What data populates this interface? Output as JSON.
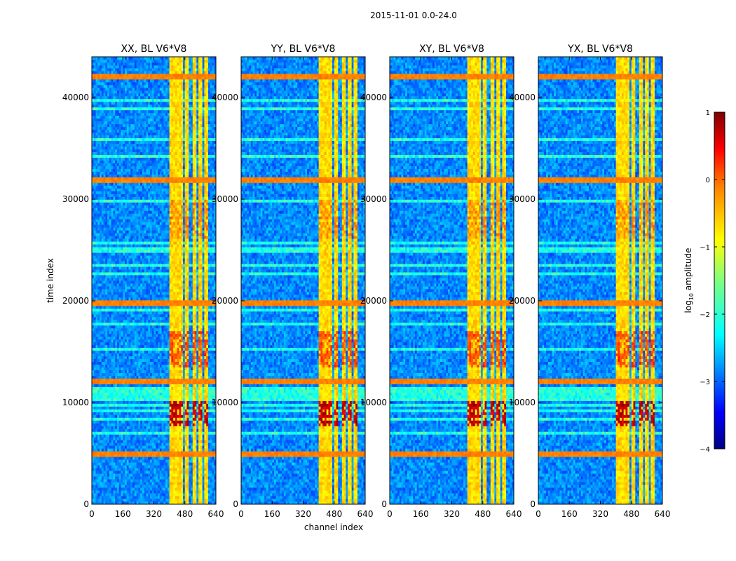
{
  "chart_data": {
    "type": "heatmap",
    "title": "2015-11-01 0.0-24.0",
    "xlabel": "channel index",
    "ylabel": "time index",
    "xlim": [
      0,
      640
    ],
    "ylim": [
      0,
      44000
    ],
    "x_ticks": [
      0,
      160,
      320,
      480,
      640
    ],
    "y_ticks": [
      0,
      10000,
      20000,
      30000,
      40000
    ],
    "panels": [
      {
        "title": "XX, BL V6*V8"
      },
      {
        "title": "YY, BL V6*V8"
      },
      {
        "title": "XY, BL V6*V8"
      },
      {
        "title": "YX, BL V6*V8"
      }
    ],
    "colorbar": {
      "label": "log10 amplitude",
      "label_main": "log",
      "label_sub": "10",
      "label_rest": " amplitude",
      "range": [
        -4,
        1
      ],
      "ticks": [
        1,
        0,
        -1,
        -2,
        -3,
        -4
      ],
      "tick_labels": [
        "1",
        "0",
        "−1",
        "−2",
        "−3",
        "−4"
      ],
      "colormap": "jet"
    },
    "signal_columns": [
      {
        "from": 400,
        "to": 470
      },
      {
        "from": 480,
        "to": 500
      },
      {
        "from": 520,
        "to": 535
      },
      {
        "from": 555,
        "to": 565
      },
      {
        "from": 585,
        "to": 600
      }
    ],
    "bright_rows": [
      5000,
      12000,
      19800,
      32000,
      42000
    ],
    "burst_time_ranges": [
      {
        "from": 7800,
        "to": 10200,
        "level": 0.98
      },
      {
        "from": 13500,
        "to": 17000,
        "level": 0.85
      },
      {
        "from": 26000,
        "to": 30000,
        "level": 0.78
      }
    ]
  },
  "colors": {
    "axis": "#000000",
    "background": "#ffffff"
  }
}
